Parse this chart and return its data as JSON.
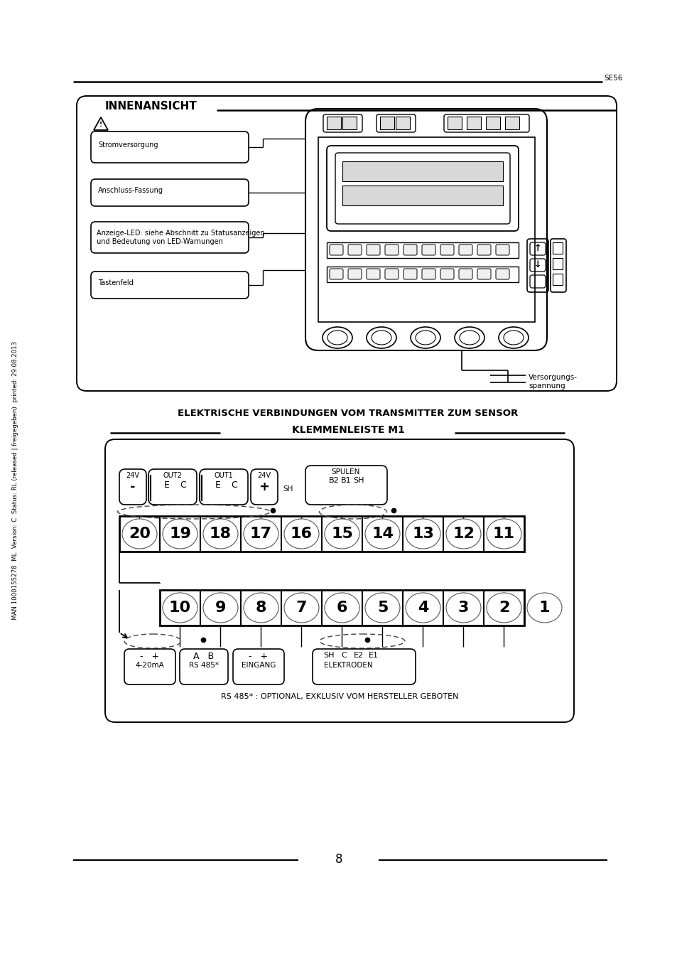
{
  "page_num": "8",
  "page_code": "SE56",
  "bg_color": "#ffffff",
  "sidebar_text": "MAN 1000155278  ML  Version: C  Status: RL (released | freigegeben)  printed: 29.08.2013",
  "section1_title": "INNENANSICHT",
  "label1": "Stromversorgung",
  "label2": "Anschluss-Fassung",
  "label3a": "Anzeige-LED: siehe Abschnitt zu Statusanzeigen",
  "label3b": "und Bedeutung von LED-Warnungen",
  "label4": "Tastenfeld",
  "versorgung_line1": "Versorgungs-",
  "versorgung_line2": "spannung",
  "section2_title": "ELEKTRISCHE VERBINDUNGEN VOM TRANSMITTER ZUM SENSOR",
  "section2_subtitle": "KLEMMENLEISTE M1",
  "top_row_numbers": [
    20,
    19,
    18,
    17,
    16,
    15,
    14,
    13,
    12,
    11
  ],
  "bot_row_numbers": [
    10,
    9,
    8,
    7,
    6,
    5,
    4,
    3,
    2,
    1
  ],
  "footnote": "RS 485* : OPTIONAL, EXKLUSIV VOM HERSTELLER GEBOTEN"
}
